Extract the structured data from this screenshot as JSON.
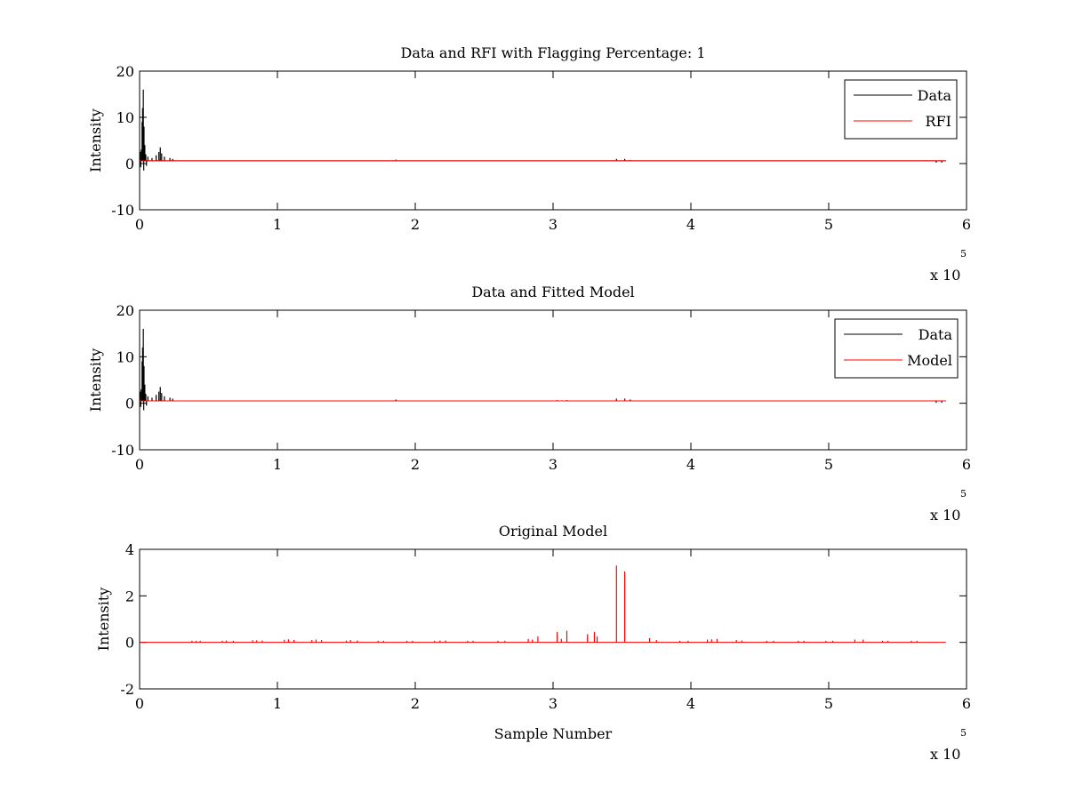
{
  "chart_data": [
    {
      "type": "line",
      "title": "Data and RFI with Flagging Percentage: 1",
      "xlabel": "",
      "ylabel": "Intensity",
      "xlim": [
        0,
        6
      ],
      "ylim": [
        -10,
        20
      ],
      "xticks": [
        "0",
        "1",
        "2",
        "3",
        "4",
        "5",
        "6"
      ],
      "yticks": [
        "20",
        "10",
        "0",
        "-10"
      ],
      "x_multiplier_base": "x 10",
      "x_multiplier_exp": "5",
      "legend_position": "top-right",
      "series": [
        {
          "name": "Data",
          "color": "#000000",
          "baseline": 0.6,
          "x_end": 5.85,
          "spikes": [
            [
              0.005,
              2.5
            ],
            [
              0.012,
              3.0
            ],
            [
              0.018,
              9.0
            ],
            [
              0.022,
              12.0
            ],
            [
              0.027,
              16.0
            ],
            [
              0.032,
              8.0
            ],
            [
              0.038,
              4.0
            ],
            [
              0.045,
              2.0
            ],
            [
              0.06,
              1.5
            ],
            [
              0.09,
              1.2
            ],
            [
              0.12,
              1.8
            ],
            [
              0.14,
              2.5
            ],
            [
              0.15,
              3.5
            ],
            [
              0.16,
              2.2
            ],
            [
              0.18,
              1.5
            ],
            [
              0.22,
              1.2
            ],
            [
              0.24,
              1.0
            ],
            [
              3.46,
              1.0
            ],
            [
              3.52,
              1.0
            ]
          ],
          "dips": [
            [
              0.008,
              -0.8
            ],
            [
              0.03,
              -1.5
            ],
            [
              0.05,
              -0.5
            ],
            [
              5.78,
              0.2
            ],
            [
              5.82,
              0.2
            ]
          ]
        },
        {
          "name": "RFI",
          "color": "#ff0000",
          "baseline": 0.6,
          "x_end": 5.85,
          "spikes": [
            [
              1.86,
              0.9
            ],
            [
              3.56,
              0.8
            ],
            [
              5.7,
              0.7
            ]
          ],
          "dips": []
        }
      ]
    },
    {
      "type": "line",
      "title": "Data and Fitted Model",
      "xlabel": "",
      "ylabel": "Intensity",
      "xlim": [
        0,
        6
      ],
      "ylim": [
        -10,
        20
      ],
      "xticks": [
        "0",
        "1",
        "2",
        "3",
        "4",
        "5",
        "6"
      ],
      "yticks": [
        "20",
        "10",
        "0",
        "-10"
      ],
      "x_multiplier_base": "x 10",
      "x_multiplier_exp": "5",
      "legend_position": "top-right",
      "series": [
        {
          "name": "Data",
          "color": "#000000",
          "baseline": 0.5,
          "x_end": 5.85,
          "spikes": [
            [
              0.005,
              2.5
            ],
            [
              0.012,
              3.0
            ],
            [
              0.018,
              9.0
            ],
            [
              0.022,
              12.0
            ],
            [
              0.027,
              16.0
            ],
            [
              0.032,
              8.0
            ],
            [
              0.038,
              4.0
            ],
            [
              0.045,
              2.0
            ],
            [
              0.06,
              1.5
            ],
            [
              0.09,
              1.2
            ],
            [
              0.12,
              1.8
            ],
            [
              0.14,
              2.5
            ],
            [
              0.15,
              3.5
            ],
            [
              0.16,
              2.2
            ],
            [
              0.18,
              1.5
            ],
            [
              0.22,
              1.2
            ],
            [
              0.24,
              1.0
            ],
            [
              1.86,
              0.8
            ],
            [
              3.46,
              1.0
            ],
            [
              3.52,
              1.0
            ],
            [
              3.56,
              0.8
            ]
          ],
          "dips": [
            [
              0.008,
              -0.8
            ],
            [
              0.03,
              -1.5
            ],
            [
              0.05,
              -0.5
            ],
            [
              5.78,
              0.1
            ],
            [
              5.82,
              0.1
            ]
          ]
        },
        {
          "name": "Model",
          "color": "#ff0000",
          "baseline": 0.5,
          "x_end": 5.85,
          "spikes": [
            [
              0.3,
              0.6
            ],
            [
              3.03,
              0.7
            ],
            [
              3.1,
              0.7
            ],
            [
              3.46,
              0.8
            ],
            [
              3.52,
              0.8
            ],
            [
              5.7,
              0.6
            ]
          ],
          "dips": []
        }
      ]
    },
    {
      "type": "line",
      "title": "Original Model",
      "xlabel": "Sample Number",
      "ylabel": "Intensity",
      "xlim": [
        0,
        6
      ],
      "ylim": [
        -2,
        4
      ],
      "xticks": [
        "0",
        "1",
        "2",
        "3",
        "4",
        "5",
        "6"
      ],
      "yticks": [
        "4",
        "2",
        "0",
        "-2"
      ],
      "x_multiplier_base": "x 10",
      "x_multiplier_exp": "5",
      "legend_position": "none",
      "series": [
        {
          "name": "",
          "color": "#ff0000",
          "baseline": 0.0,
          "x_end": 5.85,
          "spikes": [
            [
              0.38,
              0.07
            ],
            [
              0.41,
              0.07
            ],
            [
              0.44,
              0.07
            ],
            [
              0.6,
              0.07
            ],
            [
              0.63,
              0.08
            ],
            [
              0.68,
              0.07
            ],
            [
              0.82,
              0.09
            ],
            [
              0.85,
              0.09
            ],
            [
              0.89,
              0.08
            ],
            [
              1.05,
              0.11
            ],
            [
              1.08,
              0.13
            ],
            [
              1.12,
              0.1
            ],
            [
              1.25,
              0.1
            ],
            [
              1.28,
              0.12
            ],
            [
              1.32,
              0.1
            ],
            [
              1.5,
              0.08
            ],
            [
              1.53,
              0.1
            ],
            [
              1.58,
              0.08
            ],
            [
              1.73,
              0.07
            ],
            [
              1.77,
              0.07
            ],
            [
              1.94,
              0.07
            ],
            [
              1.98,
              0.07
            ],
            [
              2.14,
              0.07
            ],
            [
              2.18,
              0.08
            ],
            [
              2.22,
              0.08
            ],
            [
              2.38,
              0.07
            ],
            [
              2.42,
              0.07
            ],
            [
              2.6,
              0.07
            ],
            [
              2.65,
              0.07
            ],
            [
              2.82,
              0.15
            ],
            [
              2.85,
              0.12
            ],
            [
              2.89,
              0.25
            ],
            [
              3.03,
              0.45
            ],
            [
              3.06,
              0.15
            ],
            [
              3.1,
              0.5
            ],
            [
              3.25,
              0.35
            ],
            [
              3.3,
              0.45
            ],
            [
              3.32,
              0.25
            ],
            [
              3.46,
              3.3
            ],
            [
              3.52,
              3.05
            ],
            [
              3.7,
              0.18
            ],
            [
              3.75,
              0.1
            ],
            [
              3.92,
              0.07
            ],
            [
              3.98,
              0.07
            ],
            [
              4.12,
              0.12
            ],
            [
              4.15,
              0.13
            ],
            [
              4.19,
              0.15
            ],
            [
              4.33,
              0.1
            ],
            [
              4.37,
              0.08
            ],
            [
              4.55,
              0.07
            ],
            [
              4.6,
              0.07
            ],
            [
              4.78,
              0.07
            ],
            [
              4.82,
              0.07
            ],
            [
              4.98,
              0.07
            ],
            [
              5.03,
              0.07
            ],
            [
              5.19,
              0.12
            ],
            [
              5.25,
              0.12
            ],
            [
              5.39,
              0.07
            ],
            [
              5.43,
              0.07
            ],
            [
              5.6,
              0.07
            ],
            [
              5.64,
              0.07
            ]
          ],
          "dips": []
        }
      ]
    }
  ]
}
